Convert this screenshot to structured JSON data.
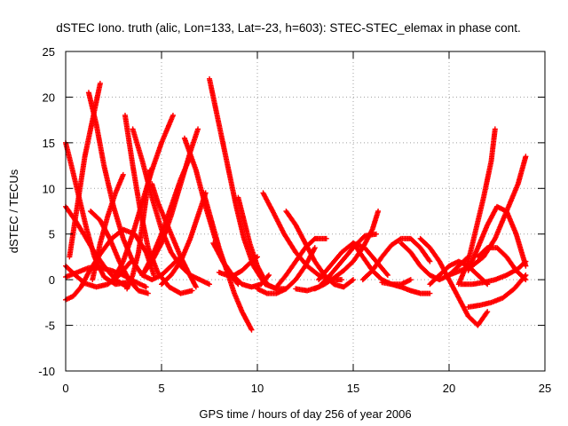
{
  "chart_data": {
    "type": "scatter",
    "title": "dSTEC Iono. truth (alic, Lon=133, Lat=-23, h=603): STEC-STEC_elemax in phase cont.",
    "xlabel": "GPS time / hours of day 256 of year 2006",
    "ylabel": "dSTEC  / TECUs",
    "xlim": [
      0,
      25
    ],
    "ylim": [
      -10,
      25
    ],
    "xticks": [
      0,
      5,
      10,
      15,
      20,
      25
    ],
    "yticks": [
      -10,
      -5,
      0,
      5,
      10,
      15,
      20,
      25
    ],
    "grid": true,
    "marker": "+",
    "color": "#ff0000",
    "series": [
      {
        "x": [
          0.0,
          0.3,
          0.7,
          1.1,
          1.5,
          2.0,
          2.6,
          3.2
        ],
        "y": [
          15.0,
          12.5,
          9.0,
          5.5,
          2.5,
          0.3,
          -0.5,
          -0.3
        ]
      },
      {
        "x": [
          0.0,
          0.5,
          1.0,
          1.5,
          2.0,
          2.6,
          3.2
        ],
        "y": [
          8.0,
          6.5,
          4.8,
          3.0,
          1.5,
          0.0,
          -0.8
        ]
      },
      {
        "x": [
          0.0,
          0.4,
          0.8,
          1.2,
          1.8,
          2.4,
          3.0,
          3.6,
          4.2,
          4.6
        ],
        "y": [
          -2.2,
          -1.8,
          -0.8,
          0.8,
          2.8,
          4.5,
          5.5,
          5.0,
          3.0,
          0.5
        ]
      },
      {
        "x": [
          0.0,
          0.5,
          1.0,
          1.6,
          2.2,
          2.8,
          3.4
        ],
        "y": [
          1.5,
          0.5,
          -0.4,
          -0.8,
          -0.5,
          0.5,
          2.0
        ]
      },
      {
        "x": [
          0.0,
          0.6,
          1.2,
          1.8,
          2.4,
          3.0,
          3.6,
          4.2
        ],
        "y": [
          0.3,
          0.8,
          1.3,
          1.3,
          1.0,
          0.5,
          -0.2,
          -0.8
        ]
      },
      {
        "x": [
          1.2,
          1.6,
          2.0,
          2.5,
          3.0,
          3.5,
          4.0,
          4.5,
          5.0,
          5.5,
          6.0
        ],
        "y": [
          20.5,
          17.0,
          12.5,
          8.0,
          4.5,
          2.0,
          0.5,
          0.0,
          0.5,
          1.5,
          2.5
        ]
      },
      {
        "x": [
          1.8,
          1.4,
          1.0,
          0.6,
          0.2
        ],
        "y": [
          21.5,
          17.5,
          13.5,
          8.0,
          2.5
        ]
      },
      {
        "x": [
          1.3,
          1.8,
          2.3,
          2.8,
          3.3,
          3.8,
          4.3
        ],
        "y": [
          7.5,
          6.5,
          4.5,
          2.0,
          0.0,
          -1.2,
          -1.5
        ]
      },
      {
        "x": [
          3.1,
          3.5,
          3.9,
          4.3,
          4.8,
          5.4,
          6.0,
          6.6
        ],
        "y": [
          18.0,
          12.5,
          7.5,
          3.5,
          0.8,
          -0.8,
          -1.5,
          -1.2
        ]
      },
      {
        "x": [
          3.0,
          2.6,
          2.2,
          1.8,
          1.4
        ],
        "y": [
          11.5,
          9.5,
          7.0,
          4.0,
          0.0
        ]
      },
      {
        "x": [
          3.5,
          4.0,
          4.5,
          5.0,
          5.5,
          6.0,
          6.5,
          7.0,
          7.5
        ],
        "y": [
          16.5,
          13.0,
          9.0,
          5.5,
          3.0,
          1.5,
          0.5,
          0.0,
          -0.5
        ]
      },
      {
        "x": [
          4.5,
          4.8,
          5.2,
          5.6,
          6.0,
          6.4,
          6.8
        ],
        "y": [
          10.5,
          8.5,
          6.5,
          4.5,
          2.5,
          0.8,
          -0.8
        ]
      },
      {
        "x": [
          4.4,
          4.2,
          4.0,
          3.8,
          3.5,
          3.2
        ],
        "y": [
          12.0,
          9.0,
          6.0,
          3.0,
          0.5,
          -1.0
        ]
      },
      {
        "x": [
          5.6,
          5.0,
          4.5,
          4.0,
          3.5,
          3.0,
          2.5
        ],
        "y": [
          18.0,
          15.0,
          12.0,
          8.5,
          5.0,
          2.0,
          0.0
        ]
      },
      {
        "x": [
          6.2,
          6.8,
          7.3,
          7.8,
          8.2,
          8.6,
          9.0
        ],
        "y": [
          15.5,
          12.0,
          8.0,
          4.5,
          2.0,
          0.5,
          -0.5
        ]
      },
      {
        "x": [
          6.5,
          6.0,
          5.5,
          5.0,
          4.5,
          4.0
        ],
        "y": [
          13.5,
          11.0,
          8.0,
          5.0,
          2.5,
          0.5
        ]
      },
      {
        "x": [
          6.9,
          6.5,
          6.0,
          5.5,
          5.0,
          4.5,
          4.0
        ],
        "y": [
          16.5,
          14.0,
          10.5,
          7.0,
          4.0,
          2.0,
          0.5
        ]
      },
      {
        "x": [
          7.3,
          6.9,
          6.5,
          6.0,
          5.5,
          5.0
        ],
        "y": [
          9.5,
          7.0,
          4.5,
          2.0,
          0.5,
          -0.5
        ]
      },
      {
        "x": [
          7.5,
          7.8,
          8.1,
          8.5,
          8.9,
          9.3,
          9.8,
          10.4,
          11.0
        ],
        "y": [
          22.0,
          19.0,
          16.0,
          12.0,
          8.0,
          4.5,
          1.5,
          -0.5,
          -1.0
        ]
      },
      {
        "x": [
          7.2,
          7.6,
          8.0,
          8.4,
          8.8,
          9.2,
          9.7
        ],
        "y": [
          9.5,
          6.5,
          3.5,
          1.0,
          -1.5,
          -3.5,
          -5.5
        ]
      },
      {
        "x": [
          7.7,
          8.2,
          8.7,
          9.2,
          9.7,
          10.2,
          10.6
        ],
        "y": [
          4.0,
          2.0,
          0.5,
          -0.5,
          -0.8,
          -0.5,
          0.5
        ]
      },
      {
        "x": [
          9.0,
          9.3,
          9.6,
          10.0,
          10.5,
          11.0,
          11.5
        ],
        "y": [
          9.0,
          6.5,
          4.0,
          1.5,
          -0.5,
          -1.0,
          -1.0
        ]
      },
      {
        "x": [
          10.3,
          10.8,
          11.4,
          12.0,
          12.6,
          13.2,
          13.8,
          14.4
        ],
        "y": [
          9.5,
          7.5,
          5.0,
          3.0,
          1.5,
          0.5,
          0.0,
          0.0
        ]
      },
      {
        "x": [
          10.0,
          9.6,
          9.2,
          8.8,
          8.4,
          8.0
        ],
        "y": [
          2.5,
          1.8,
          1.0,
          0.5,
          0.5,
          0.8
        ]
      },
      {
        "x": [
          11.5,
          12.0,
          12.5,
          13.0,
          13.5,
          14.0,
          14.5,
          15.0
        ],
        "y": [
          7.5,
          6.0,
          4.0,
          2.0,
          0.5,
          -0.5,
          -0.8,
          0.0
        ]
      },
      {
        "x": [
          11.0,
          11.5,
          12.0,
          12.5,
          13.0,
          13.6
        ],
        "y": [
          -0.8,
          0.5,
          2.0,
          3.5,
          4.5,
          4.5
        ]
      },
      {
        "x": [
          13.0,
          12.5,
          12.0,
          11.5,
          11.0,
          10.5,
          10.0
        ],
        "y": [
          3.5,
          1.5,
          0.0,
          -1.0,
          -1.5,
          -1.5,
          -1.0
        ]
      },
      {
        "x": [
          12.0,
          12.6,
          13.2,
          13.8,
          14.4,
          15.0,
          15.6,
          16.2
        ],
        "y": [
          -1.0,
          -1.2,
          -0.8,
          0.5,
          2.0,
          3.5,
          4.8,
          5.0
        ]
      },
      {
        "x": [
          13.0,
          13.5,
          14.0,
          14.5,
          15.0,
          15.5,
          16.0,
          16.3
        ],
        "y": [
          -1.0,
          -0.5,
          0.2,
          1.0,
          2.0,
          3.5,
          5.5,
          7.5
        ]
      },
      {
        "x": [
          13.2,
          13.8,
          14.4,
          15.0,
          15.6,
          16.2,
          16.8
        ],
        "y": [
          0.0,
          1.5,
          3.0,
          4.0,
          3.5,
          2.0,
          0.5
        ]
      },
      {
        "x": [
          15.0,
          15.5,
          16.0,
          16.5,
          17.0,
          17.5,
          18.0
        ],
        "y": [
          4.0,
          2.5,
          1.0,
          0.0,
          -0.5,
          -0.5,
          0.0
        ]
      },
      {
        "x": [
          15.5,
          16.0,
          16.5,
          17.0,
          17.5,
          18.0,
          18.5,
          19.0
        ],
        "y": [
          0.0,
          1.0,
          2.5,
          3.8,
          4.5,
          4.5,
          3.5,
          2.0
        ]
      },
      {
        "x": [
          16.5,
          17.0,
          17.5,
          18.0,
          18.5,
          19.0
        ],
        "y": [
          -0.3,
          -0.5,
          -0.8,
          -1.2,
          -1.5,
          -1.5
        ]
      },
      {
        "x": [
          17.5,
          18.0,
          18.5,
          19.0,
          19.5,
          20.0,
          20.5,
          21.0
        ],
        "y": [
          4.0,
          3.0,
          1.5,
          0.5,
          0.0,
          0.5,
          1.5,
          2.5
        ]
      },
      {
        "x": [
          18.5,
          19.0,
          19.5,
          20.0,
          20.5,
          21.0,
          21.5,
          22.0
        ],
        "y": [
          4.5,
          3.5,
          2.0,
          0.0,
          -2.0,
          -4.0,
          -5.0,
          -3.5
        ]
      },
      {
        "x": [
          19.0,
          19.5,
          20.0,
          20.5,
          21.0,
          21.5,
          22.0
        ],
        "y": [
          -0.5,
          0.5,
          1.5,
          2.0,
          1.5,
          0.5,
          -0.5
        ]
      },
      {
        "x": [
          20.0,
          20.6,
          21.2,
          21.8,
          22.4,
          23.0,
          23.6,
          24.0
        ],
        "y": [
          0.5,
          1.0,
          1.5,
          2.5,
          4.5,
          7.5,
          10.5,
          13.5
        ]
      },
      {
        "x": [
          20.5,
          21.0,
          21.4,
          21.8,
          22.2,
          22.4
        ],
        "y": [
          -0.5,
          2.0,
          5.5,
          9.0,
          13.0,
          16.5
        ]
      },
      {
        "x": [
          21.0,
          21.5,
          22.0,
          22.5,
          23.0,
          23.5,
          24.0
        ],
        "y": [
          1.0,
          3.5,
          6.0,
          8.0,
          7.5,
          5.0,
          1.5
        ]
      },
      {
        "x": [
          21.0,
          21.6,
          22.2,
          22.8,
          23.4,
          24.0
        ],
        "y": [
          -3.0,
          -2.8,
          -2.5,
          -2.0,
          -1.0,
          0.5
        ]
      },
      {
        "x": [
          20.6,
          21.2,
          21.8,
          22.4,
          23.0,
          23.6,
          24.0
        ],
        "y": [
          -0.5,
          -0.5,
          -0.3,
          0.0,
          0.5,
          1.2,
          2.0
        ]
      },
      {
        "x": [
          21.5,
          22.0,
          22.5,
          23.0,
          23.5,
          24.0
        ],
        "y": [
          2.5,
          3.5,
          3.5,
          2.5,
          1.0,
          0.0
        ]
      }
    ]
  }
}
